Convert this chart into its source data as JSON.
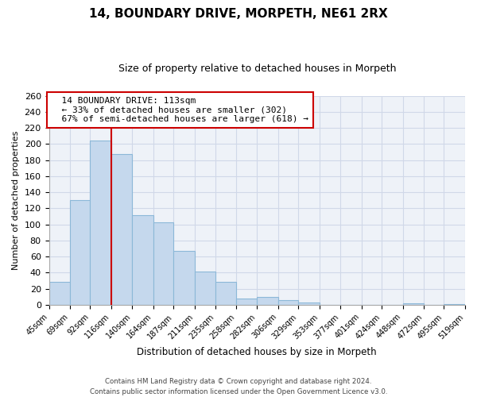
{
  "title": "14, BOUNDARY DRIVE, MORPETH, NE61 2RX",
  "subtitle": "Size of property relative to detached houses in Morpeth",
  "xlabel": "Distribution of detached houses by size in Morpeth",
  "ylabel": "Number of detached properties",
  "bar_color": "#c5d8ed",
  "bar_edge_color": "#8cb8d8",
  "vline_color": "#cc0000",
  "annotation_title": "14 BOUNDARY DRIVE: 113sqm",
  "annotation_line1": "← 33% of detached houses are smaller (302)",
  "annotation_line2": "67% of semi-detached houses are larger (618) →",
  "bin_edges": [
    45,
    69,
    92,
    116,
    140,
    164,
    187,
    211,
    235,
    258,
    282,
    306,
    329,
    353,
    377,
    401,
    424,
    448,
    472,
    495,
    519
  ],
  "bar_heights": [
    29,
    130,
    204,
    188,
    112,
    103,
    67,
    41,
    29,
    8,
    10,
    6,
    3,
    0,
    0,
    0,
    0,
    2,
    0,
    1
  ],
  "ylim": [
    0,
    260
  ],
  "yticks": [
    0,
    20,
    40,
    60,
    80,
    100,
    120,
    140,
    160,
    180,
    200,
    220,
    240,
    260
  ],
  "footnote1": "Contains HM Land Registry data © Crown copyright and database right 2024.",
  "footnote2": "Contains public sector information licensed under the Open Government Licence v3.0.",
  "annotation_box_color": "#ffffff",
  "annotation_box_edge": "#cc0000",
  "bg_color": "#eef2f8",
  "grid_color": "#d0d8e8"
}
